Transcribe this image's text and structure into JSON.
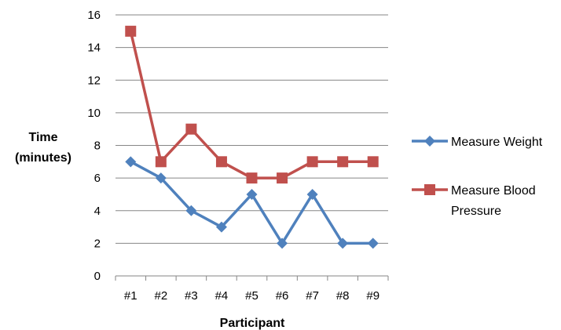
{
  "chart_data": {
    "type": "line",
    "categories": [
      "#1",
      "#2",
      "#3",
      "#4",
      "#5",
      "#6",
      "#7",
      "#8",
      "#9"
    ],
    "series": [
      {
        "name": "Measure Weight",
        "values": [
          7,
          6,
          4,
          3,
          5,
          2,
          5,
          2,
          2
        ],
        "color": "#4F81BD",
        "marker": "diamond"
      },
      {
        "name": "Measure Blood Pressure",
        "name_lines": [
          "Measure Blood",
          "Pressure"
        ],
        "values": [
          15,
          7,
          9,
          7,
          6,
          6,
          7,
          7,
          7
        ],
        "color": "#C0504D",
        "marker": "square"
      }
    ],
    "title": "",
    "xlabel": "Participant",
    "ylabel_lines": [
      "Time",
      "(minutes)"
    ],
    "ylim": [
      0,
      16
    ],
    "yticks": [
      0,
      2,
      4,
      6,
      8,
      10,
      12,
      14,
      16
    ],
    "grid": true,
    "legend": "right"
  }
}
